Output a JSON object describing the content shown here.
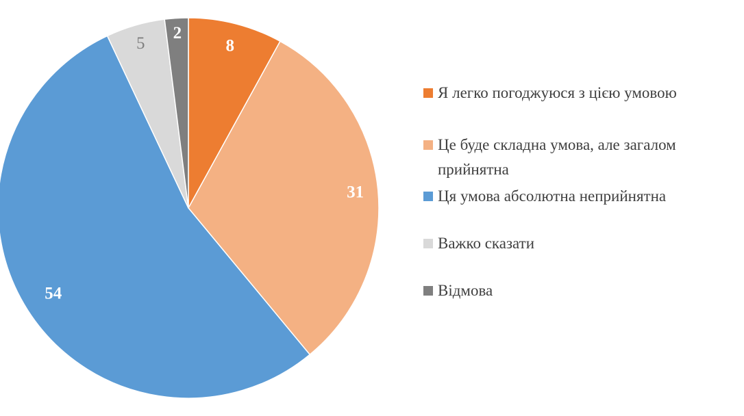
{
  "chart_data": {
    "type": "pie",
    "title": "",
    "start_angle": 0,
    "direction": "clockwise",
    "legend_position": "right",
    "background_color": "#ffffff",
    "legend_text_color": "#3f3f3f",
    "categories": [
      "Я легко погоджуюся з цією умовою",
      "Це буде складна умова, але загалом прийнятна",
      "Ця умова абсолютна неприйнятна",
      "Важко сказати",
      "Відмова"
    ],
    "values": [
      8,
      31,
      54,
      5,
      2
    ],
    "slices": [
      {
        "label": "Я легко погоджуюся з цією умовою",
        "value": 8,
        "color": "#ED7D31",
        "label_color": "#ffffff",
        "label_bold": true,
        "label_r": 0.88
      },
      {
        "label": "Це буде складна умова, але загалом прийнятна",
        "value": 31,
        "color": "#F4B183",
        "label_color": "#ffffff",
        "label_bold": true,
        "label_r": 0.88
      },
      {
        "label": "Ця умова абсолютна неприйнятна",
        "value": 54,
        "color": "#5B9BD5",
        "label_color": "#ffffff",
        "label_bold": true,
        "label_r": 0.84
      },
      {
        "label": "Важко сказати",
        "value": 5,
        "color": "#D9D9D9",
        "label_color": "#7F7F7F",
        "label_bold": false,
        "label_r": 0.9
      },
      {
        "label": "Відмова",
        "value": 2,
        "color": "#7F7F7F",
        "label_color": "#ffffff",
        "label_bold": true,
        "label_r": 0.92
      }
    ]
  }
}
